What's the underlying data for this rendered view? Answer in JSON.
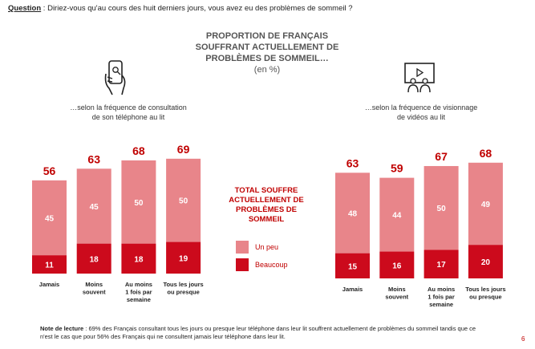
{
  "question": {
    "label": "Question",
    "text": " : Diriez-vous qu'au cours des huit derniers jours, vous avez eu des problèmes de sommeil ?"
  },
  "header": {
    "title_line1": "PROPORTION DE FRANÇAIS",
    "title_line2": "SOUFFRANT ACTUELLEMENT DE",
    "title_line3": "PROBLÈMES DE SOMMEIL…",
    "unit": "(en %)"
  },
  "left_subtitle": {
    "line1": "…selon la fréquence de consultation",
    "line2": "de son téléphone au lit"
  },
  "right_subtitle": {
    "line1": "…selon la fréquence de visionnage",
    "line2": "de vidéos au lit"
  },
  "legend": {
    "title": "TOTAL SOUFFRE ACTUELLEMENT DE PROBLÈMES DE SOMMEIL",
    "item_light": "Un peu",
    "item_dark": "Beaucoup"
  },
  "colors": {
    "light": "#e8858a",
    "dark": "#cc0a1c",
    "total_text": "#c00000"
  },
  "chart_data": [
    {
      "type": "bar",
      "stacked": true,
      "categories": [
        "Jamais",
        "Moins souvent",
        "Au moins 1 fois par semaine",
        "Tous les jours ou presque"
      ],
      "category_lines": [
        [
          "Jamais"
        ],
        [
          "Moins",
          "souvent"
        ],
        [
          "Au moins",
          "1 fois par",
          "semaine"
        ],
        [
          "Tous les jours",
          "ou presque"
        ]
      ],
      "series": [
        {
          "name": "Beaucoup",
          "values": [
            11,
            18,
            18,
            19
          ]
        },
        {
          "name": "Un peu",
          "values": [
            45,
            45,
            50,
            50
          ]
        }
      ],
      "totals": [
        56,
        63,
        68,
        69
      ],
      "ylim": [
        0,
        75
      ]
    },
    {
      "type": "bar",
      "stacked": true,
      "categories": [
        "Jamais",
        "Moins souvent",
        "Au moins 1 fois par semaine",
        "Tous les jours ou presque"
      ],
      "category_lines": [
        [
          "Jamais"
        ],
        [
          "Moins",
          "souvent"
        ],
        [
          "Au moins",
          "1 fois par",
          "semaine"
        ],
        [
          "Tous les jours",
          "ou presque"
        ]
      ],
      "series": [
        {
          "name": "Beaucoup",
          "values": [
            15,
            16,
            17,
            20
          ]
        },
        {
          "name": "Un peu",
          "values": [
            48,
            44,
            50,
            49
          ]
        }
      ],
      "totals": [
        63,
        59,
        67,
        68
      ],
      "ylim": [
        0,
        75
      ]
    }
  ],
  "note": {
    "label": "Note de lecture",
    "text": " : 69% des Français consultant tous les jours ou presque leur téléphone dans leur lit souffrent actuellement de problèmes du sommeil tandis que ce n'est le cas que pour 56% des Français qui ne consultent jamais leur téléphone dans leur lit."
  },
  "page_number": "6",
  "icons": {
    "left": "phone-in-hand-icon",
    "right": "tv-viewing-icon"
  }
}
